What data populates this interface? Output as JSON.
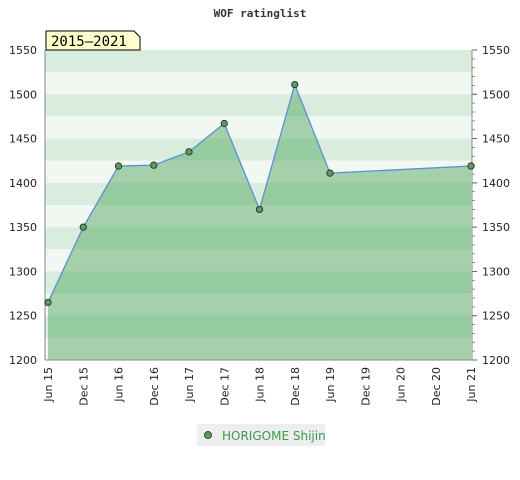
{
  "chart_data": {
    "type": "area",
    "title": "WOF ratinglist",
    "period_badge": "2015–2021",
    "xlabel": "",
    "ylabel": "",
    "ylim": [
      1200,
      1550
    ],
    "yticks": [
      1200,
      1250,
      1300,
      1350,
      1400,
      1450,
      1500,
      1550
    ],
    "x_tick_labels": [
      "Jun 15",
      "Dec 15",
      "Jun 16",
      "Dec 16",
      "Jun 17",
      "Dec 17",
      "Jun 18",
      "Dec 18",
      "Jun 19",
      "Dec 19",
      "Jun 20",
      "Dec 20",
      "Jun 21"
    ],
    "legend_position": "bottom-center",
    "grid": true,
    "series": [
      {
        "name": "HORIGOME Shijin",
        "color": "#3a9a4a",
        "line_color": "#5b8fd6",
        "x": [
          "Jun 15",
          "Dec 15",
          "Jun 16",
          "Dec 16",
          "Jun 17",
          "Dec 17",
          "Jun 18",
          "Dec 18",
          "Jun 19",
          "Jun 21"
        ],
        "values": [
          1265,
          1350,
          1419,
          1420,
          1435,
          1467,
          1370,
          1511,
          1411,
          1419
        ]
      }
    ]
  }
}
